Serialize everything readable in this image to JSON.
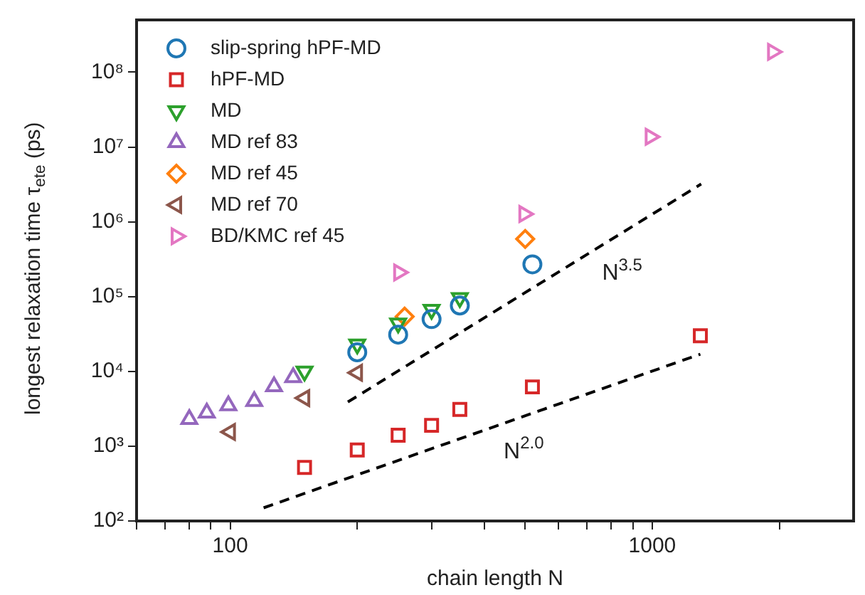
{
  "chart_data": {
    "type": "scatter",
    "xlabel": "chain length N",
    "ylabel": "longest relaxation time τ$_{ete}$ (ps)",
    "log": "xy",
    "grid": false,
    "legend": "top left",
    "xlim": [
      60,
      3000
    ],
    "ylim": [
      100,
      500000000
    ],
    "xticks": [
      {
        "value": 60,
        "label": null
      },
      {
        "value": 70,
        "label": null
      },
      {
        "value": 80,
        "label": null
      },
      {
        "value": 90,
        "label": null
      },
      100,
      {
        "value": 200,
        "label": null
      },
      {
        "value": 300,
        "label": null
      },
      {
        "value": 400,
        "label": null
      },
      {
        "value": 500,
        "label": null
      },
      {
        "value": 600,
        "label": null
      },
      {
        "value": 700,
        "label": null
      },
      {
        "value": 800,
        "label": null
      },
      {
        "value": 900,
        "label": null
      },
      1000,
      {
        "value": 2000,
        "label": null
      }
    ],
    "yticks": [
      {
        "value": 100,
        "label": "10²"
      },
      {
        "value": 1000,
        "label": "10³"
      },
      {
        "value": 10000,
        "label": "10⁴"
      },
      {
        "value": 100000,
        "label": "10⁵"
      },
      {
        "value": 1000000,
        "label": "10⁶"
      },
      {
        "value": 10000000,
        "label": "10⁷"
      },
      {
        "value": 100000000,
        "label": "10⁸"
      }
    ],
    "series": [
      {
        "name": "slip-spring hPF-MD",
        "color": "#1f77b4",
        "marker": "circle",
        "x": [
          200,
          250,
          300,
          350,
          520
        ],
        "values": [
          18000,
          31000,
          50000,
          76000,
          270000
        ]
      },
      {
        "name": "hPF-MD",
        "color": "#d62728",
        "marker": "square",
        "x": [
          150,
          200,
          250,
          300,
          350,
          520,
          1300
        ],
        "values": [
          520,
          890,
          1400,
          1900,
          3100,
          6200,
          30000
        ]
      },
      {
        "name": "MD",
        "color": "#2ca02c",
        "marker": "triangle-down",
        "x": [
          150,
          200,
          250,
          300,
          350
        ],
        "values": [
          10000,
          23000,
          44000,
          67000,
          96000
        ]
      },
      {
        "name": "MD ref 83",
        "color": "#9467bd",
        "marker": "triangle",
        "x": [
          80,
          88,
          99,
          114,
          127,
          141
        ],
        "values": [
          2300,
          2800,
          3500,
          4000,
          6300,
          8300
        ]
      },
      {
        "name": "MD ref 45",
        "color": "#ff7f0e",
        "marker": "diamond",
        "x": [
          259,
          500
        ],
        "values": [
          54000,
          590000
        ]
      },
      {
        "name": "MD ref 70",
        "color": "#8c564b",
        "marker": "triangle-left",
        "x": [
          100,
          150,
          200
        ],
        "values": [
          1550,
          4400,
          9600
        ]
      },
      {
        "name": "BD/KMC ref 45",
        "color": "#e377c2",
        "marker": "triangle-right",
        "x": [
          251,
          497,
          990,
          1930
        ],
        "values": [
          210000,
          1270000,
          13700000,
          187000000
        ]
      },
      {
        "type": "line",
        "color": "#000000",
        "marker": "none",
        "line_style": "dashed",
        "x": [
          190,
          1306
        ],
        "values": [
          3900,
          3200000
        ]
      },
      {
        "type": "line",
        "color": "#000000",
        "marker": "none",
        "line_style": "dashed",
        "x": [
          120,
          1300
        ],
        "values": [
          150,
          17000
        ]
      }
    ],
    "annotations": [
      "N$^{3.5}$",
      "N$^{2.0}$"
    ]
  }
}
